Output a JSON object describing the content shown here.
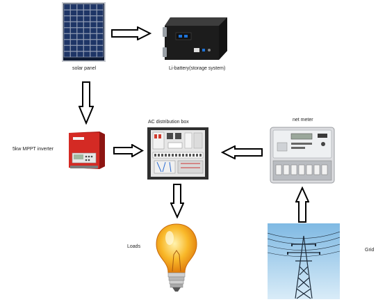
{
  "labels": {
    "solar_panel": "solar panel",
    "battery": "Li-battery(storage system)",
    "inverter": "5kw MPPT inverter",
    "ac_box": "AC distribution box",
    "net_meter": "net meter",
    "loads": "Loads",
    "grid": "Grid"
  },
  "colors": {
    "arrow_fill": "#ffffff",
    "arrow_stroke": "#000000",
    "inverter_red": "#d42a24",
    "battery_body": "#1c1c1c",
    "bulb_glow": "#f7a81b",
    "sky_blue": "#a9d2ec"
  },
  "icons": [
    "solar-panel-icon",
    "battery-icon",
    "inverter-icon",
    "ac-distribution-box-icon",
    "net-meter-icon",
    "light-bulb-icon",
    "power-pylon-icon"
  ]
}
